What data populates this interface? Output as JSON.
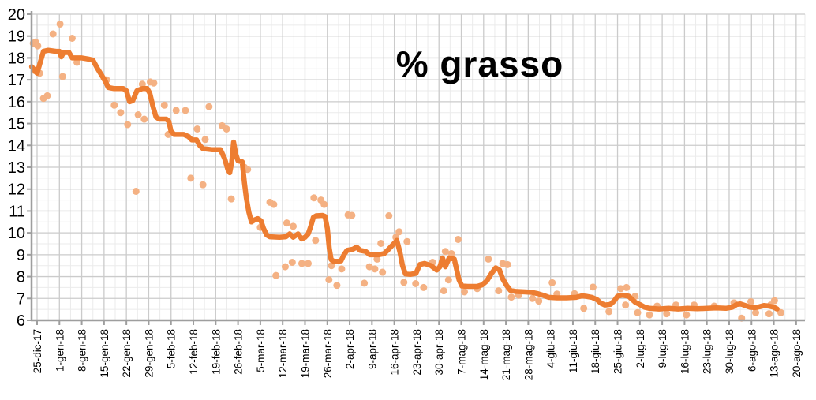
{
  "chart_data": {
    "type": "line",
    "title": "% grasso",
    "xlabel": "",
    "ylabel": "",
    "legend": "none",
    "grid": "on",
    "y_axis": {
      "min": 6,
      "max": 20,
      "major_step": 1,
      "minor_step": 0.5,
      "tick_labels": [
        "6",
        "7",
        "8",
        "9",
        "10",
        "11",
        "12",
        "13",
        "14",
        "15",
        "16",
        "17",
        "18",
        "19",
        "20"
      ]
    },
    "x_axis": {
      "days_per_tick": 7,
      "minor_step_days": 3.5,
      "tick_labels": [
        "25-dic-17",
        "1-gen-18",
        "8-gen-18",
        "15-gen-18",
        "22-gen-18",
        "29-gen-18",
        "5-feb-18",
        "12-feb-18",
        "19-feb-18",
        "26-feb-18",
        "5-mar-18",
        "12-mar-18",
        "19-mar-18",
        "26-mar-18",
        "2-apr-18",
        "9-apr-18",
        "16-apr-18",
        "23-apr-18",
        "30-apr-18",
        "7-mag-18",
        "14-mag-18",
        "21-mag-18",
        "28-mag-18",
        "4-giu-18",
        "11-giu-18",
        "18-giu-18",
        "25-giu-18",
        "2-lug-18",
        "9-lug-18",
        "16-lug-18",
        "23-lug-18",
        "30-lug-18",
        "6-ago-18",
        "13-ago-18",
        "20-ago-18"
      ]
    },
    "colors": {
      "trend_line": "#ED7D31",
      "scatter_dots": "#F4B183",
      "major_grid": "#CBCBCB",
      "minor_grid": "#EBEBEB",
      "axis": "#9E9E9E",
      "text": "#000000"
    },
    "series": [
      {
        "name": "trend-line",
        "type": "line",
        "points": [
          [
            -1.7,
            17.6
          ],
          [
            0,
            17.3
          ],
          [
            1,
            17.8
          ],
          [
            2,
            18.3
          ],
          [
            3.5,
            18.35
          ],
          [
            6,
            18.3
          ],
          [
            7,
            18.3
          ],
          [
            7.6,
            18.05
          ],
          [
            8.3,
            18.25
          ],
          [
            10,
            18.25
          ],
          [
            11,
            18.0
          ],
          [
            14,
            18.0
          ],
          [
            16,
            17.95
          ],
          [
            17.5,
            17.9
          ],
          [
            19,
            17.5
          ],
          [
            20.5,
            17.15
          ],
          [
            21.5,
            16.9
          ],
          [
            22.3,
            16.65
          ],
          [
            24,
            16.6
          ],
          [
            27,
            16.6
          ],
          [
            28,
            16.5
          ],
          [
            29,
            16.0
          ],
          [
            30,
            16.05
          ],
          [
            31.3,
            16.5
          ],
          [
            33,
            16.6
          ],
          [
            34.5,
            16.6
          ],
          [
            35.3,
            16.4
          ],
          [
            36.3,
            15.8
          ],
          [
            37.3,
            15.3
          ],
          [
            38.3,
            15.2
          ],
          [
            40.5,
            15.2
          ],
          [
            41.3,
            15.1
          ],
          [
            42,
            14.65
          ],
          [
            43,
            14.5
          ],
          [
            46,
            14.5
          ],
          [
            47.5,
            14.4
          ],
          [
            48.5,
            14.25
          ],
          [
            50,
            14.25
          ],
          [
            51,
            14.0
          ],
          [
            52,
            13.85
          ],
          [
            55,
            13.8
          ],
          [
            57.5,
            13.8
          ],
          [
            58.8,
            13.4
          ],
          [
            59.8,
            12.9
          ],
          [
            60.4,
            12.75
          ],
          [
            61,
            13.2
          ],
          [
            61.6,
            14.15
          ],
          [
            62.3,
            13.6
          ],
          [
            63,
            13.3
          ],
          [
            64.3,
            13.25
          ],
          [
            65,
            12.3
          ],
          [
            65.6,
            11.6
          ],
          [
            66.4,
            10.95
          ],
          [
            67.2,
            10.5
          ],
          [
            68.3,
            10.6
          ],
          [
            69.2,
            10.65
          ],
          [
            70.2,
            10.55
          ],
          [
            71,
            10.2
          ],
          [
            72,
            9.9
          ],
          [
            73,
            9.82
          ],
          [
            76,
            9.8
          ],
          [
            78,
            9.82
          ],
          [
            79.2,
            9.95
          ],
          [
            80.3,
            9.8
          ],
          [
            81.8,
            9.95
          ],
          [
            83,
            9.72
          ],
          [
            84,
            9.8
          ],
          [
            85,
            9.95
          ],
          [
            85.8,
            10.3
          ],
          [
            86.6,
            10.7
          ],
          [
            87.5,
            10.78
          ],
          [
            89.5,
            10.8
          ],
          [
            90.3,
            10.75
          ],
          [
            91,
            10.2
          ],
          [
            91.6,
            9.3
          ],
          [
            92.2,
            8.78
          ],
          [
            93,
            8.7
          ],
          [
            95.3,
            8.72
          ],
          [
            96.2,
            9.0
          ],
          [
            97.2,
            9.2
          ],
          [
            99,
            9.25
          ],
          [
            100.2,
            9.35
          ],
          [
            101.3,
            9.2
          ],
          [
            103,
            9.15
          ],
          [
            104.3,
            9.0
          ],
          [
            107,
            9.0
          ],
          [
            108.8,
            9.05
          ],
          [
            110.2,
            9.25
          ],
          [
            111.5,
            9.45
          ],
          [
            112.8,
            9.65
          ],
          [
            113.8,
            9.1
          ],
          [
            114.6,
            8.5
          ],
          [
            115.5,
            8.12
          ],
          [
            117,
            8.1
          ],
          [
            118.8,
            8.15
          ],
          [
            120,
            8.55
          ],
          [
            121.5,
            8.6
          ],
          [
            123.5,
            8.5
          ],
          [
            125.3,
            8.3
          ],
          [
            126.3,
            8.45
          ],
          [
            127.1,
            8.85
          ],
          [
            128,
            8.45
          ],
          [
            129.2,
            8.85
          ],
          [
            130.8,
            8.8
          ],
          [
            131.6,
            8.3
          ],
          [
            132.3,
            7.85
          ],
          [
            133.2,
            7.57
          ],
          [
            135,
            7.55
          ],
          [
            138,
            7.55
          ],
          [
            139.5,
            7.62
          ],
          [
            141,
            7.8
          ],
          [
            142.5,
            8.15
          ],
          [
            143.8,
            8.4
          ],
          [
            145,
            8.3
          ],
          [
            146,
            7.9
          ],
          [
            147.2,
            7.6
          ],
          [
            148.4,
            7.37
          ],
          [
            150,
            7.32
          ],
          [
            153,
            7.3
          ],
          [
            155,
            7.28
          ],
          [
            157,
            7.22
          ],
          [
            158.5,
            7.15
          ],
          [
            159.5,
            7.1
          ],
          [
            160.5,
            7.05
          ],
          [
            163,
            7.03
          ],
          [
            166,
            7.03
          ],
          [
            169,
            7.05
          ],
          [
            170.8,
            7.12
          ],
          [
            172,
            7.1
          ],
          [
            174,
            7.05
          ],
          [
            175.5,
            6.95
          ],
          [
            176.8,
            6.78
          ],
          [
            178,
            6.7
          ],
          [
            179.8,
            6.73
          ],
          [
            181,
            6.9
          ],
          [
            182,
            7.1
          ],
          [
            183.5,
            7.15
          ],
          [
            185.5,
            7.1
          ],
          [
            186.6,
            6.95
          ],
          [
            187.6,
            6.82
          ],
          [
            189,
            6.72
          ],
          [
            190.5,
            6.6
          ],
          [
            192,
            6.55
          ],
          [
            195,
            6.52
          ],
          [
            198,
            6.55
          ],
          [
            201,
            6.52
          ],
          [
            204,
            6.55
          ],
          [
            207,
            6.53
          ],
          [
            210,
            6.55
          ],
          [
            213,
            6.57
          ],
          [
            216,
            6.55
          ],
          [
            218,
            6.6
          ],
          [
            219.3,
            6.72
          ],
          [
            220.5,
            6.75
          ],
          [
            222,
            6.68
          ],
          [
            223.5,
            6.6
          ],
          [
            225,
            6.58
          ],
          [
            226.5,
            6.62
          ],
          [
            228,
            6.68
          ],
          [
            229.5,
            6.65
          ],
          [
            231,
            6.6
          ],
          [
            232,
            6.52
          ]
        ]
      },
      {
        "name": "daily-measurements",
        "type": "scatter",
        "points": [
          [
            -1.2,
            18.67
          ],
          [
            -0.5,
            18.73
          ],
          [
            0.2,
            18.55
          ],
          [
            -0.7,
            17.42
          ],
          [
            0.8,
            17.3
          ],
          [
            2,
            16.15
          ],
          [
            3.2,
            16.27
          ],
          [
            5,
            19.1
          ],
          [
            7.2,
            19.55
          ],
          [
            8,
            17.15
          ],
          [
            11,
            18.9
          ],
          [
            12.5,
            17.8
          ],
          [
            21.8,
            17.0
          ],
          [
            24.2,
            15.84
          ],
          [
            26.2,
            15.5
          ],
          [
            28.4,
            14.95
          ],
          [
            31,
            11.9
          ],
          [
            31.7,
            15.4
          ],
          [
            33,
            16.8
          ],
          [
            33.6,
            15.2
          ],
          [
            35.5,
            16.9
          ],
          [
            36.6,
            16.85
          ],
          [
            39.9,
            15.84
          ],
          [
            41.1,
            14.5
          ],
          [
            43.6,
            15.6
          ],
          [
            46.5,
            15.6
          ],
          [
            48.2,
            12.5
          ],
          [
            50.2,
            14.75
          ],
          [
            52,
            12.2
          ],
          [
            52.7,
            14.27
          ],
          [
            53.9,
            15.77
          ],
          [
            58,
            14.9
          ],
          [
            59.4,
            14.75
          ],
          [
            60.9,
            11.55
          ],
          [
            65,
            13.0
          ],
          [
            66,
            12.9
          ],
          [
            70,
            10.25
          ],
          [
            73,
            11.4
          ],
          [
            74.2,
            11.3
          ],
          [
            74.9,
            8.05
          ],
          [
            77.8,
            8.45
          ],
          [
            78.3,
            10.45
          ],
          [
            80.3,
            10.3
          ],
          [
            80,
            8.65
          ],
          [
            83,
            8.6
          ],
          [
            85,
            8.6
          ],
          [
            86.8,
            11.6
          ],
          [
            87.3,
            9.65
          ],
          [
            89,
            11.5
          ],
          [
            90,
            11.3
          ],
          [
            91.5,
            7.86
          ],
          [
            92.3,
            8.5
          ],
          [
            94,
            7.6
          ],
          [
            95.5,
            8.35
          ],
          [
            97.5,
            10.82
          ],
          [
            98.7,
            10.8
          ],
          [
            102.6,
            7.7
          ],
          [
            104.2,
            8.45
          ],
          [
            105.9,
            8.35
          ],
          [
            106.6,
            8.8
          ],
          [
            107.8,
            9.52
          ],
          [
            108.3,
            8.2
          ],
          [
            110.3,
            10.78
          ],
          [
            112.5,
            9.8
          ],
          [
            113.5,
            10.05
          ],
          [
            115,
            7.74
          ],
          [
            116,
            9.6
          ],
          [
            118.7,
            7.68
          ],
          [
            121.2,
            7.5
          ],
          [
            124,
            8.65
          ],
          [
            127.5,
            7.35
          ],
          [
            128,
            9.15
          ],
          [
            129.9,
            9.05
          ],
          [
            129,
            7.85
          ],
          [
            132,
            9.7
          ],
          [
            134,
            7.3
          ],
          [
            138,
            7.45
          ],
          [
            141.5,
            8.8
          ],
          [
            144.7,
            7.35
          ],
          [
            146,
            8.6
          ],
          [
            147.5,
            8.55
          ],
          [
            148.7,
            7.06
          ],
          [
            151,
            7.15
          ],
          [
            155.3,
            7.0
          ],
          [
            157.3,
            6.88
          ],
          [
            161.5,
            7.72
          ],
          [
            163,
            7.2
          ],
          [
            168.5,
            7.22
          ],
          [
            171.4,
            6.55
          ],
          [
            174.3,
            7.52
          ],
          [
            179.3,
            6.4
          ],
          [
            183,
            7.45
          ],
          [
            184.8,
            7.5
          ],
          [
            187.5,
            7.1
          ],
          [
            184.5,
            6.7
          ],
          [
            188.3,
            6.35
          ],
          [
            192,
            6.25
          ],
          [
            194.4,
            6.65
          ],
          [
            197.4,
            6.3
          ],
          [
            200.3,
            6.7
          ],
          [
            203.6,
            6.25
          ],
          [
            206,
            6.7
          ],
          [
            212.3,
            6.65
          ],
          [
            218.5,
            6.8
          ],
          [
            220.9,
            6.1
          ],
          [
            223.8,
            6.85
          ],
          [
            225.3,
            6.35
          ],
          [
            229.5,
            6.3
          ],
          [
            230,
            6.7
          ],
          [
            231.2,
            6.9
          ],
          [
            233.2,
            6.35
          ]
        ]
      }
    ]
  }
}
